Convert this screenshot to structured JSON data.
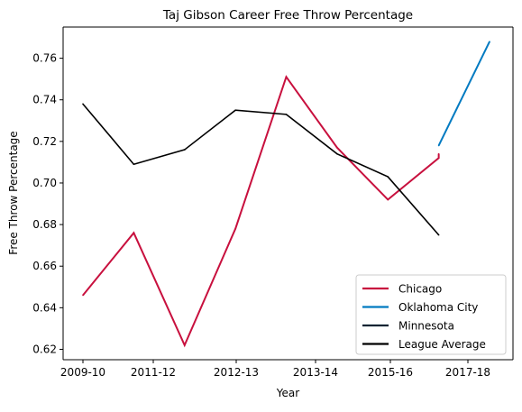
{
  "chart_data": {
    "type": "line",
    "title": "Taj Gibson Career Free Throw Percentage",
    "xlabel": "Year",
    "ylabel": "Free Throw Percentage",
    "x_tick_labels": [
      "2009-10",
      "2011-12",
      "2012-13",
      "2013-14",
      "2015-16",
      "2017-18"
    ],
    "ylim": [
      0.615,
      0.775
    ],
    "y_ticks": [
      "0.62",
      "0.64",
      "0.66",
      "0.68",
      "0.70",
      "0.72",
      "0.74",
      "0.76"
    ],
    "grid": false,
    "legend_position": "lower-right",
    "series": [
      {
        "name": "Chicago",
        "color": "#c8103e",
        "points": [
          {
            "x": "2009-10",
            "y": 0.646
          },
          {
            "x": "2010-11",
            "y": 0.676
          },
          {
            "x": "2011-12",
            "y": 0.622
          },
          {
            "x": "2012-13",
            "y": 0.678
          },
          {
            "x": "2013-14",
            "y": 0.751
          },
          {
            "x": "2014-15",
            "y": 0.717
          },
          {
            "x": "2015-16",
            "y": 0.692
          },
          {
            "x": "2016-17",
            "y": 0.712
          },
          {
            "x": "2016-17",
            "y": 0.714
          }
        ]
      },
      {
        "name": "Oklahoma City",
        "color": "#007ac1",
        "points": [
          {
            "x": "2016-17",
            "y": 0.718
          },
          {
            "x": "2017-18",
            "y": 0.768
          }
        ]
      },
      {
        "name": "Minnesota",
        "color": "#0c2433",
        "points": []
      },
      {
        "name": "League Average",
        "color": "#000000",
        "points": [
          {
            "x": "2009-10",
            "y": 0.738
          },
          {
            "x": "2010-11",
            "y": 0.709
          },
          {
            "x": "2011-12",
            "y": 0.716
          },
          {
            "x": "2012-13",
            "y": 0.735
          },
          {
            "x": "2013-14",
            "y": 0.733
          },
          {
            "x": "2014-15",
            "y": 0.714
          },
          {
            "x": "2015-16",
            "y": 0.703
          },
          {
            "x": "2016-17",
            "y": 0.675
          }
        ]
      }
    ]
  }
}
